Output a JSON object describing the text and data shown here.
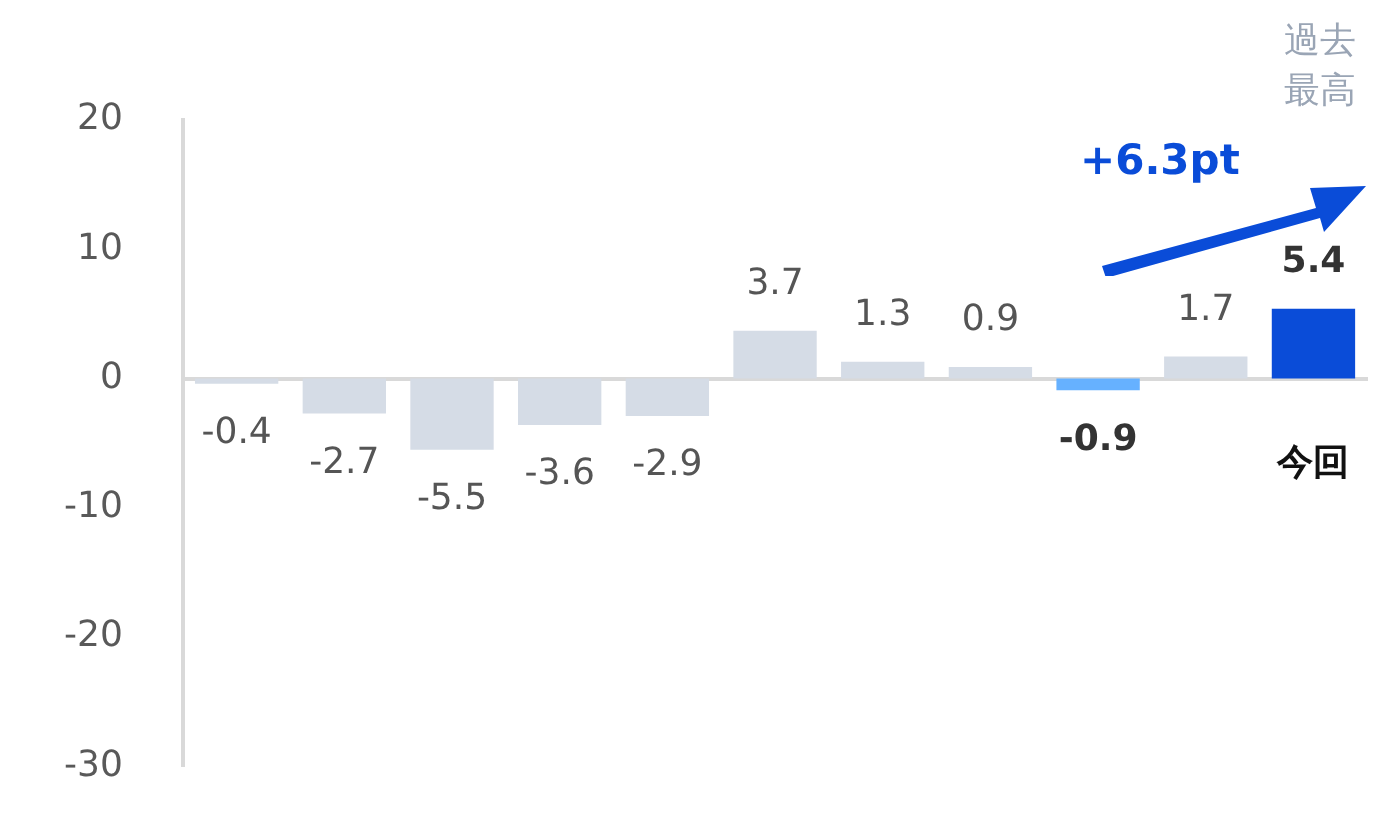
{
  "chart_data": {
    "type": "bar",
    "categories": [
      null,
      null,
      null,
      null,
      null,
      null,
      null,
      null,
      null,
      null,
      "今回"
    ],
    "values": [
      -0.4,
      -2.7,
      -5.5,
      -3.6,
      -2.9,
      3.7,
      1.3,
      0.9,
      -0.9,
      1.7,
      5.4
    ],
    "colors": [
      "#d5dce6",
      "#d5dce6",
      "#d5dce6",
      "#d5dce6",
      "#d5dce6",
      "#d5dce6",
      "#d5dce6",
      "#d5dce6",
      "#66b1ff",
      "#d5dce6",
      "#0a4cd8"
    ],
    "ylim": [
      -30,
      20
    ],
    "yticks": [
      20,
      10,
      0,
      -10,
      -20,
      -30
    ],
    "data_labels": true,
    "annotations": [
      "+6.3pt",
      "過去最高"
    ]
  }
}
